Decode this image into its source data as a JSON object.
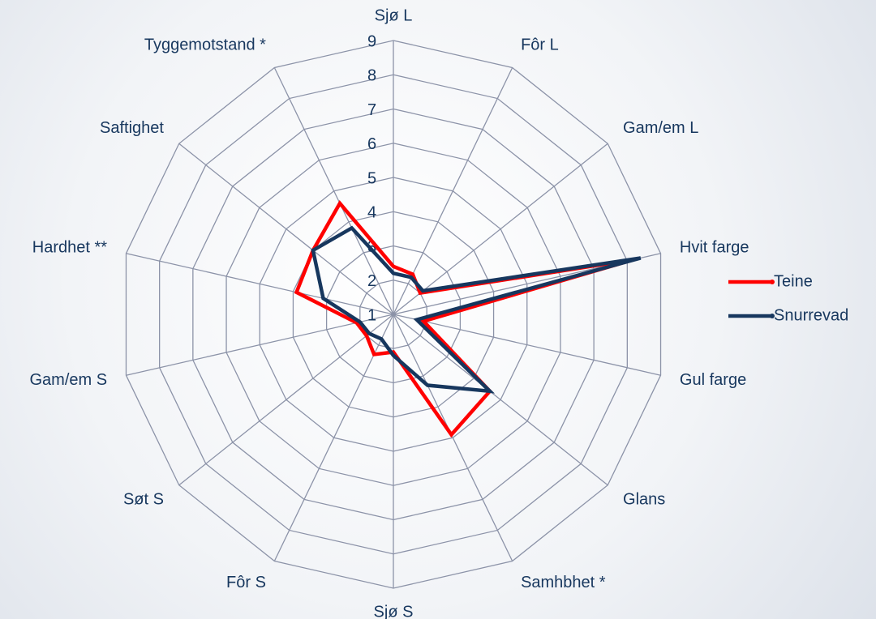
{
  "chart_data": {
    "type": "radar",
    "categories": [
      "Sjø L",
      "Fôr L",
      "Gam/em L",
      "Hvit farge",
      "Gul farge",
      "Glans",
      "Samhbhet *",
      "Sjø S",
      "Fôr S",
      "Søt S",
      "Gam/em S",
      "Hardhet **",
      "Saftighet",
      "Tyggemotstand *"
    ],
    "series": [
      {
        "name": "Teine",
        "color": "#ff0000",
        "values": [
          2.4,
          2.3,
          2.0,
          8.2,
          1.9,
          4.6,
          4.9,
          2.1,
          2.3,
          2.0,
          2.1,
          3.9,
          4.0,
          4.6
        ]
      },
      {
        "name": "Snurrevad",
        "color": "#17375e",
        "values": [
          2.2,
          2.2,
          2.1,
          8.4,
          1.7,
          4.6,
          3.3,
          2.2,
          1.8,
          1.9,
          2.0,
          3.1,
          4.0,
          3.8
        ]
      }
    ],
    "ylim": [
      1,
      9
    ],
    "yticks": [
      1,
      2,
      3,
      4,
      5,
      6,
      7,
      8,
      9
    ],
    "grid": true,
    "legend": "right"
  }
}
